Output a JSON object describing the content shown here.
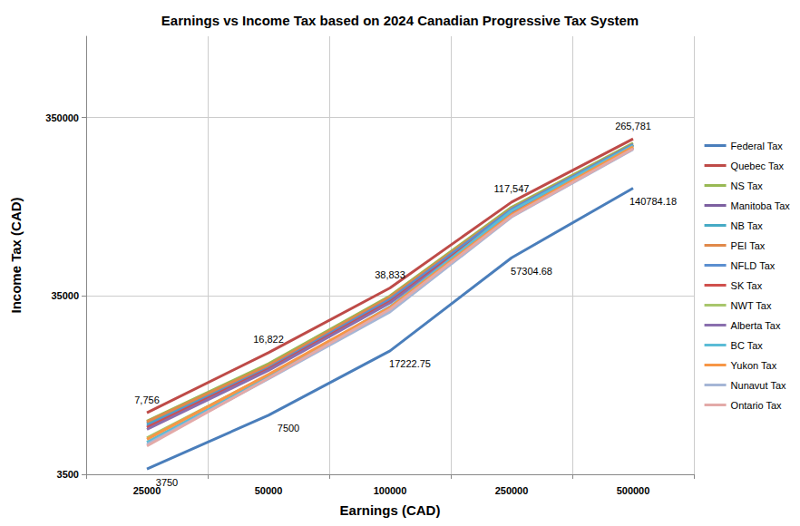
{
  "chart_data": {
    "type": "line",
    "title": "Earnings vs Income Tax based on 2024 Canadian Progressive Tax System",
    "x_label": "Earnings (CAD)",
    "y_label": "Income Tax (CAD)",
    "categories": [
      25000,
      50000,
      100000,
      250000,
      500000
    ],
    "ylim": [
      3500,
      1000000
    ],
    "yticks": [
      3500,
      35000,
      350000
    ],
    "log": "y",
    "grid": true,
    "legend": "right",
    "series": [
      {
        "name": "Federal Tax",
        "color": "#4a7ebb",
        "values": [
          3750,
          7500,
          17222.75,
          57304.68,
          140784.18
        ],
        "data_labels": true
      },
      {
        "name": "Quebec Tax",
        "color": "#be4b48",
        "values": [
          7756,
          16822,
          38833,
          117547,
          265781
        ],
        "data_labels": true,
        "value_labels": [
          "7,756",
          "16,822",
          "38,833",
          "117,547",
          "265,781"
        ]
      },
      {
        "name": "NS Tax",
        "color": "#98b954",
        "values": [
          6950,
          14600,
          35000,
          110000,
          252000
        ]
      },
      {
        "name": "Manitoba Tax",
        "color": "#7d60a0",
        "values": [
          6800,
          14000,
          33800,
          104000,
          245000
        ]
      },
      {
        "name": "NB Tax",
        "color": "#46aac5",
        "values": [
          6650,
          14100,
          34000,
          106000,
          246000
        ]
      },
      {
        "name": "PEI Tax",
        "color": "#e0894a",
        "values": [
          6900,
          14300,
          34500,
          108000,
          248000
        ]
      },
      {
        "name": "NFLD Tax",
        "color": "#5b8fd0",
        "values": [
          6500,
          13800,
          33500,
          107000,
          247000
        ]
      },
      {
        "name": "SK Tax",
        "color": "#d0504d",
        "values": [
          6400,
          13600,
          32500,
          103000,
          238000
        ]
      },
      {
        "name": "NWT Tax",
        "color": "#a8c66c",
        "values": [
          5600,
          12600,
          30000,
          99000,
          242000
        ]
      },
      {
        "name": "Alberta Tax",
        "color": "#8a6fae",
        "values": [
          6250,
          13400,
          32000,
          101000,
          236000
        ]
      },
      {
        "name": "BC Tax",
        "color": "#5bbcd6",
        "values": [
          5300,
          12300,
          30500,
          105000,
          244000
        ]
      },
      {
        "name": "Yukon Tax",
        "color": "#f79646",
        "values": [
          5500,
          12700,
          30200,
          100000,
          240000
        ]
      },
      {
        "name": "Nunavut Tax",
        "color": "#a5b6d6",
        "values": [
          5150,
          12000,
          28500,
          97000,
          232000
        ]
      },
      {
        "name": "Ontario Tax",
        "color": "#e3aaa8",
        "values": [
          5050,
          12100,
          29500,
          98000,
          234000
        ]
      }
    ]
  }
}
